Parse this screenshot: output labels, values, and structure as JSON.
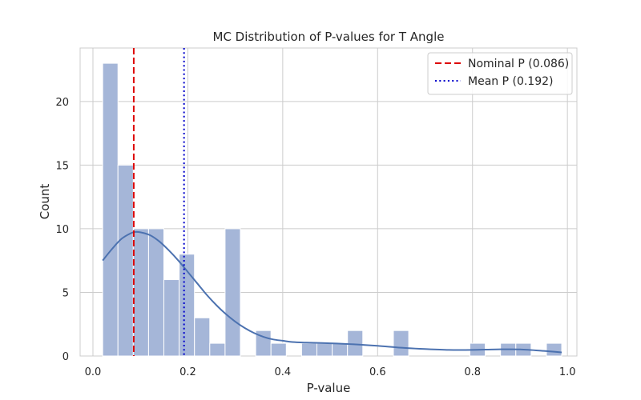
{
  "chart_data": {
    "type": "bar",
    "title": "MC Distribution of P-values for T Angle",
    "xlabel": "P-value",
    "ylabel": "Count",
    "xlim": [
      -0.027,
      1.02
    ],
    "ylim": [
      0,
      24.2
    ],
    "xticks": [
      0.0,
      0.2,
      0.4,
      0.6,
      0.8,
      1.0
    ],
    "xtick_labels": [
      "0.0",
      "0.2",
      "0.4",
      "0.6",
      "0.8",
      "1.0"
    ],
    "yticks": [
      0,
      5,
      10,
      15,
      20
    ],
    "ytick_labels": [
      "0",
      "5",
      "10",
      "15",
      "20"
    ],
    "grid": true,
    "legend_position": "top-right",
    "histogram": {
      "bin_start": 0.0205,
      "bin_width": 0.03225,
      "counts": [
        23,
        15,
        10,
        10,
        6,
        8,
        3,
        1,
        10,
        0,
        2,
        1,
        0,
        1,
        1,
        1,
        2,
        0,
        0,
        2,
        0,
        0,
        0,
        0,
        1,
        0,
        1,
        1,
        0,
        1
      ],
      "color": "#a5b6d8",
      "edge_color": "#ffffff"
    },
    "kde": {
      "name": "",
      "color": "#4c72b0",
      "x": [
        0.0205,
        0.04,
        0.06,
        0.08,
        0.09,
        0.1,
        0.12,
        0.14,
        0.16,
        0.18,
        0.2,
        0.22,
        0.24,
        0.26,
        0.28,
        0.3,
        0.32,
        0.34,
        0.36,
        0.38,
        0.4,
        0.42,
        0.45,
        0.5,
        0.55,
        0.6,
        0.65,
        0.7,
        0.75,
        0.8,
        0.85,
        0.9,
        0.95,
        0.988
      ],
      "y": [
        7.5,
        8.4,
        9.2,
        9.65,
        9.75,
        9.72,
        9.5,
        9.0,
        8.3,
        7.5,
        6.6,
        5.7,
        4.8,
        4.0,
        3.3,
        2.7,
        2.2,
        1.8,
        1.5,
        1.3,
        1.2,
        1.1,
        1.05,
        1.0,
        0.92,
        0.8,
        0.65,
        0.55,
        0.48,
        0.48,
        0.52,
        0.52,
        0.4,
        0.28
      ]
    },
    "reference_lines": [
      {
        "name": "Nominal P (0.086)",
        "x": 0.086,
        "color": "#dd0000",
        "style": "dashed"
      },
      {
        "name": "Mean P (0.192)",
        "x": 0.192,
        "color": "#0000cc",
        "style": "dotted"
      }
    ]
  }
}
